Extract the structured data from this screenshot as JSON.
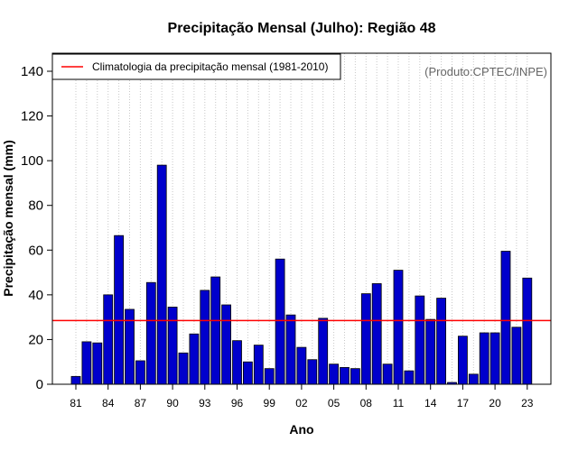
{
  "chart_data": {
    "type": "bar",
    "title": "Precipitação Mensal (Julho): Região 48",
    "xlabel": "Ano",
    "ylabel": "Precipitação mensal (mm)",
    "credit": "(Produto:CPTEC/INPE)",
    "ylim": [
      0,
      145
    ],
    "yticks": [
      0,
      20,
      40,
      60,
      80,
      100,
      120,
      140
    ],
    "x": [
      1981,
      1982,
      1983,
      1984,
      1985,
      1986,
      1987,
      1988,
      1989,
      1990,
      1991,
      1992,
      1993,
      1994,
      1995,
      1996,
      1997,
      1998,
      1999,
      2000,
      2001,
      2002,
      2003,
      2004,
      2005,
      2006,
      2007,
      2008,
      2009,
      2010,
      2011,
      2012,
      2013,
      2014,
      2015,
      2016,
      2017,
      2018,
      2019,
      2020,
      2021,
      2022,
      2023
    ],
    "xtick_labels": [
      "81",
      "84",
      "87",
      "90",
      "93",
      "96",
      "99",
      "02",
      "05",
      "08",
      "11",
      "14",
      "17",
      "20",
      "23"
    ],
    "xtick_years": [
      1981,
      1984,
      1987,
      1990,
      1993,
      1996,
      1999,
      2002,
      2005,
      2008,
      2011,
      2014,
      2017,
      2020,
      2023
    ],
    "values": [
      3.5,
      19,
      18.5,
      40,
      66.5,
      33.5,
      10.5,
      45.5,
      98,
      34.5,
      14,
      22.5,
      42,
      48,
      35.5,
      19.5,
      10,
      17.5,
      7,
      56,
      31,
      16.5,
      11,
      29.5,
      9,
      7.5,
      7,
      40.5,
      45,
      9,
      51,
      6,
      39.5,
      29,
      38.5,
      0.8,
      21.5,
      4.5,
      23,
      23,
      59.5,
      25.5,
      47.5
    ],
    "climatology": {
      "label": "Climatologia da precipitação mensal (1981-2010)",
      "value": 28.5,
      "color": "#ff0000"
    },
    "bar_color": "#0000cc",
    "grid": "vertical dotted",
    "legend_placement": "top-left"
  }
}
